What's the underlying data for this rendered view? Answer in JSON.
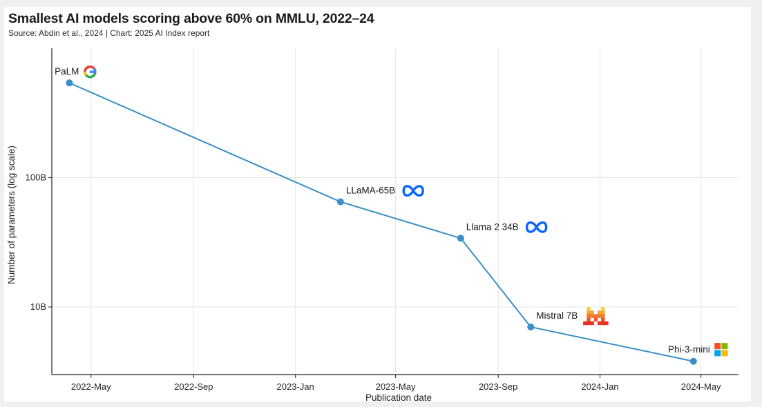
{
  "header": {
    "title": "Smallest AI models scoring above 60% on MMLU, 2022–24",
    "subtitle": "Source: Abdin et al., 2024 | Chart: 2025 AI Index report"
  },
  "chart_data": {
    "type": "line",
    "title": "Smallest AI models scoring above 60% on MMLU, 2022–24",
    "xlabel": "Publication date",
    "ylabel": "Number of parameters (log scale)",
    "y_scale": "log",
    "x_ticks": [
      "2022-May",
      "2022-Sep",
      "2023-Jan",
      "2023-May",
      "2023-Sep",
      "2024-Jan",
      "2024-May"
    ],
    "y_ticks": [
      "10B",
      "100B"
    ],
    "xlim": [
      "2022-03-15",
      "2024-06-15"
    ],
    "ylim": [
      3000000000,
      1000000000000
    ],
    "grid": true,
    "line_color": "#3a8fc7",
    "series": [
      {
        "points": [
          {
            "x": "2022-04-05",
            "y": 540000000000,
            "label": "PaLM",
            "logo": "google-logo"
          },
          {
            "x": "2023-02-24",
            "y": 65000000000,
            "label": "LLaMA-65B",
            "logo": "meta-logo"
          },
          {
            "x": "2023-07-18",
            "y": 34000000000,
            "label": "Llama 2 34B",
            "logo": "meta-logo"
          },
          {
            "x": "2023-10-10",
            "y": 7000000000,
            "label": "Mistral 7B",
            "logo": "mistral-logo"
          },
          {
            "x": "2024-04-22",
            "y": 3800000000,
            "label": "Phi-3-mini",
            "logo": "microsoft-logo"
          }
        ]
      }
    ]
  }
}
